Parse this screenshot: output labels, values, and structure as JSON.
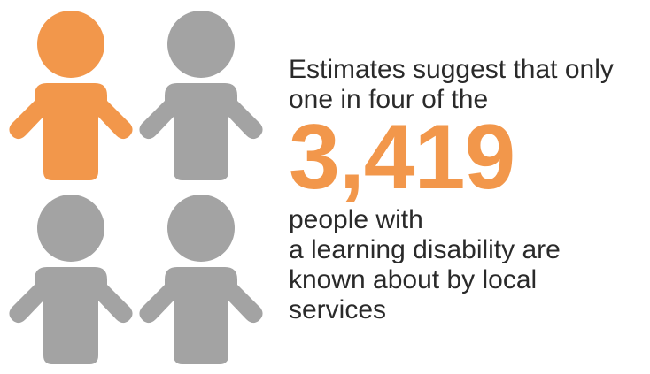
{
  "infographic": {
    "colors": {
      "highlight": "#f2974b",
      "muted": "#a3a3a3",
      "text": "#2a2a2a"
    },
    "people": [
      {
        "highlighted": true,
        "icon": "person-icon"
      },
      {
        "highlighted": false,
        "icon": "person-icon"
      },
      {
        "highlighted": false,
        "icon": "person-icon"
      },
      {
        "highlighted": false,
        "icon": "person-icon"
      }
    ],
    "intro_lines": [
      "Estimates suggest that only",
      "one in four of the"
    ],
    "big_number": "3,419",
    "outro_lines": [
      "people with",
      "a learning disability are",
      "known about by local",
      "services"
    ]
  }
}
